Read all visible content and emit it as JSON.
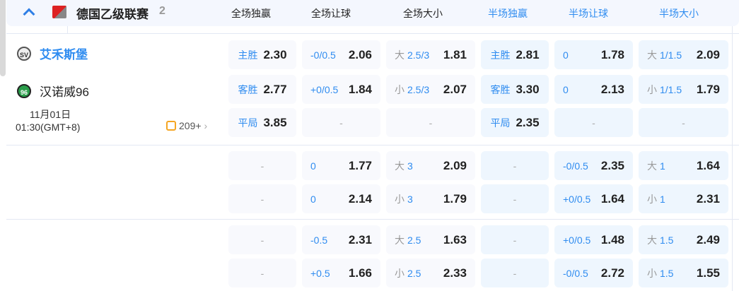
{
  "league": {
    "name": "德国乙级联赛",
    "count": "2",
    "icons": {
      "collapse": "chevron-up-icon",
      "logo": "bundesliga2-logo"
    }
  },
  "columns": [
    {
      "label": "全场独赢",
      "color": "#222222"
    },
    {
      "label": "全场让球",
      "color": "#222222"
    },
    {
      "label": "全场大小",
      "color": "#222222"
    },
    {
      "label": "半场独赢",
      "color": "#2f8cf0"
    },
    {
      "label": "半场让球",
      "color": "#2f8cf0"
    },
    {
      "label": "半场大小",
      "color": "#2f8cf0"
    }
  ],
  "match": {
    "home": "艾禾斯堡",
    "away": "汉诺威96",
    "date": "11月01日",
    "time": "01:30(GMT+8)",
    "more_markets": "209+",
    "home_color": "#2f8cf0"
  },
  "blocks": [
    [
      [
        {
          "line": "主胜",
          "odds": "2.30"
        },
        {
          "line": "-0/0.5",
          "odds": "2.06"
        },
        {
          "prefix": "大",
          "line": "2.5/3",
          "odds": "1.81"
        },
        {
          "line": "主胜",
          "odds": "2.81"
        },
        {
          "line": "0",
          "odds": "1.78"
        },
        {
          "prefix": "大",
          "line": "1/1.5",
          "odds": "2.09"
        }
      ],
      [
        {
          "line": "客胜",
          "odds": "2.77"
        },
        {
          "line": "+0/0.5",
          "odds": "1.84"
        },
        {
          "prefix": "小",
          "line": "2.5/3",
          "odds": "2.07"
        },
        {
          "line": "客胜",
          "odds": "3.30"
        },
        {
          "line": "0",
          "odds": "2.13"
        },
        {
          "prefix": "小",
          "line": "1/1.5",
          "odds": "1.79"
        }
      ],
      [
        {
          "line": "平局",
          "odds": "3.85"
        },
        {
          "empty": "-"
        },
        {
          "empty": "-"
        },
        {
          "line": "平局",
          "odds": "2.35"
        },
        {
          "empty": "-"
        },
        {
          "empty": "-"
        }
      ]
    ],
    [
      [
        {
          "empty": "-"
        },
        {
          "line": "0",
          "odds": "1.77"
        },
        {
          "prefix": "大",
          "line": "3",
          "odds": "2.09"
        },
        {
          "empty": "-"
        },
        {
          "line": "-0/0.5",
          "odds": "2.35"
        },
        {
          "prefix": "大",
          "line": "1",
          "odds": "1.64"
        }
      ],
      [
        {
          "empty": "-"
        },
        {
          "line": "0",
          "odds": "2.14"
        },
        {
          "prefix": "小",
          "line": "3",
          "odds": "1.79"
        },
        {
          "empty": "-"
        },
        {
          "line": "+0/0.5",
          "odds": "1.64"
        },
        {
          "prefix": "小",
          "line": "1",
          "odds": "2.31"
        }
      ]
    ],
    [
      [
        {
          "empty": "-"
        },
        {
          "line": "-0.5",
          "odds": "2.31"
        },
        {
          "prefix": "大",
          "line": "2.5",
          "odds": "1.63"
        },
        {
          "empty": "-"
        },
        {
          "line": "+0/0.5",
          "odds": "1.48"
        },
        {
          "prefix": "大",
          "line": "1.5",
          "odds": "2.49"
        }
      ],
      [
        {
          "empty": "-"
        },
        {
          "line": "+0.5",
          "odds": "1.66"
        },
        {
          "prefix": "小",
          "line": "2.5",
          "odds": "2.33"
        },
        {
          "empty": "-"
        },
        {
          "line": "-0/0.5",
          "odds": "2.72"
        },
        {
          "prefix": "小",
          "line": "1.5",
          "odds": "1.55"
        }
      ]
    ]
  ]
}
